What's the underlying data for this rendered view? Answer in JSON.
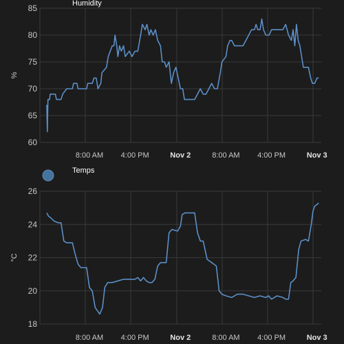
{
  "colors": {
    "line": "#5b8fc8",
    "legend_dot": "#44739e"
  },
  "chart_data": [
    {
      "type": "line",
      "series_name": "Humidity",
      "ylabel": "%",
      "ylim": [
        60,
        85
      ],
      "yticks": [
        60,
        65,
        70,
        75,
        80,
        85
      ],
      "xticks": [
        {
          "label": "8:00 AM",
          "t": 8,
          "bold": false
        },
        {
          "label": "4:00 PM",
          "t": 16,
          "bold": false
        },
        {
          "label": "Nov 2",
          "t": 24,
          "bold": true
        },
        {
          "label": "8:00 AM",
          "t": 32,
          "bold": false
        },
        {
          "label": "4:00 PM",
          "t": 40,
          "bold": false
        },
        {
          "label": "Nov 3",
          "t": 48,
          "bold": true
        }
      ],
      "xrange": [
        0.5,
        48.4
      ],
      "legend_dot": false,
      "points": [
        [
          0.5,
          67
        ],
        [
          0.6,
          62
        ],
        [
          0.7,
          68
        ],
        [
          1.0,
          68
        ],
        [
          1.1,
          69
        ],
        [
          2.0,
          69
        ],
        [
          2.2,
          68
        ],
        [
          3.0,
          68
        ],
        [
          3.3,
          69
        ],
        [
          4.0,
          70
        ],
        [
          5.0,
          70
        ],
        [
          5.2,
          71
        ],
        [
          5.8,
          71
        ],
        [
          6.0,
          70
        ],
        [
          7.5,
          70
        ],
        [
          7.7,
          71
        ],
        [
          8.5,
          71
        ],
        [
          8.8,
          72
        ],
        [
          9.2,
          72
        ],
        [
          9.5,
          70
        ],
        [
          10.0,
          71
        ],
        [
          10.2,
          73
        ],
        [
          11.0,
          74
        ],
        [
          11.3,
          76
        ],
        [
          12.0,
          78
        ],
        [
          12.3,
          78
        ],
        [
          12.5,
          80
        ],
        [
          12.8,
          78
        ],
        [
          13.0,
          76
        ],
        [
          13.3,
          78
        ],
        [
          13.6,
          77
        ],
        [
          14.0,
          78
        ],
        [
          14.3,
          76
        ],
        [
          15.0,
          77
        ],
        [
          15.5,
          76
        ],
        [
          16.0,
          77
        ],
        [
          16.5,
          77
        ],
        [
          17.0,
          80
        ],
        [
          17.3,
          82
        ],
        [
          17.8,
          81
        ],
        [
          18.1,
          82
        ],
        [
          18.5,
          80
        ],
        [
          18.8,
          81
        ],
        [
          19.2,
          80
        ],
        [
          19.6,
          81
        ],
        [
          20.0,
          79
        ],
        [
          20.5,
          78
        ],
        [
          20.8,
          75
        ],
        [
          21.2,
          75
        ],
        [
          21.5,
          74
        ],
        [
          22.0,
          75
        ],
        [
          22.4,
          71
        ],
        [
          22.8,
          73
        ],
        [
          23.2,
          74
        ],
        [
          23.6,
          72
        ],
        [
          24.0,
          70
        ],
        [
          24.4,
          70
        ],
        [
          24.7,
          68
        ],
        [
          26.0,
          68
        ],
        [
          26.5,
          68
        ],
        [
          27.0,
          69
        ],
        [
          27.5,
          70
        ],
        [
          28.0,
          69
        ],
        [
          28.5,
          69
        ],
        [
          29.0,
          70
        ],
        [
          29.5,
          71
        ],
        [
          30.0,
          70
        ],
        [
          30.5,
          70
        ],
        [
          31.0,
          73
        ],
        [
          31.3,
          75
        ],
        [
          32.0,
          76
        ],
        [
          32.3,
          78
        ],
        [
          32.7,
          79
        ],
        [
          33.0,
          79
        ],
        [
          33.5,
          78
        ],
        [
          35.0,
          78
        ],
        [
          35.5,
          79
        ],
        [
          36.0,
          80
        ],
        [
          36.5,
          81
        ],
        [
          37.0,
          81
        ],
        [
          37.3,
          82
        ],
        [
          37.6,
          81
        ],
        [
          38.0,
          81
        ],
        [
          38.3,
          83
        ],
        [
          38.6,
          81
        ],
        [
          39.0,
          80
        ],
        [
          39.6,
          80
        ],
        [
          40.0,
          81
        ],
        [
          42.0,
          81
        ],
        [
          42.5,
          82
        ],
        [
          43.0,
          80
        ],
        [
          43.5,
          79
        ],
        [
          43.8,
          81
        ],
        [
          44.1,
          78
        ],
        [
          44.4,
          82
        ],
        [
          44.7,
          79
        ],
        [
          45.0,
          78
        ],
        [
          45.3,
          76
        ],
        [
          45.6,
          74
        ],
        [
          46.5,
          74
        ],
        [
          46.9,
          72
        ],
        [
          47.2,
          71
        ],
        [
          47.6,
          71
        ],
        [
          48.0,
          72
        ],
        [
          48.3,
          72
        ]
      ]
    },
    {
      "type": "line",
      "series_name": "Temps",
      "ylabel": "°C",
      "ylim": [
        18,
        26
      ],
      "yticks": [
        18,
        20,
        22,
        24,
        26
      ],
      "xticks": [
        {
          "label": "8:00 AM",
          "t": 8,
          "bold": false
        },
        {
          "label": "4:00 PM",
          "t": 16,
          "bold": false
        },
        {
          "label": "Nov 2",
          "t": 24,
          "bold": true
        },
        {
          "label": "8:00 AM",
          "t": 32,
          "bold": false
        },
        {
          "label": "4:00 PM",
          "t": 40,
          "bold": false
        },
        {
          "label": "Nov 3",
          "t": 48,
          "bold": true
        }
      ],
      "xrange": [
        0.5,
        48.4
      ],
      "legend_dot": true,
      "points": [
        [
          0.5,
          24.7
        ],
        [
          0.8,
          24.5
        ],
        [
          1.2,
          24.4
        ],
        [
          1.8,
          24.2
        ],
        [
          2.5,
          24.1
        ],
        [
          3.0,
          24.1
        ],
        [
          3.5,
          23.0
        ],
        [
          4.0,
          22.9
        ],
        [
          5.0,
          22.9
        ],
        [
          5.5,
          22.2
        ],
        [
          6.0,
          21.6
        ],
        [
          6.5,
          21.4
        ],
        [
          7.5,
          21.4
        ],
        [
          8.0,
          20.2
        ],
        [
          8.5,
          20.0
        ],
        [
          9.0,
          19.0
        ],
        [
          9.4,
          18.8
        ],
        [
          9.8,
          18.6
        ],
        [
          10.3,
          19.0
        ],
        [
          10.7,
          20.2
        ],
        [
          11.2,
          20.5
        ],
        [
          12.0,
          20.5
        ],
        [
          13.0,
          20.6
        ],
        [
          14.0,
          20.7
        ],
        [
          15.0,
          20.7
        ],
        [
          16.0,
          20.7
        ],
        [
          16.5,
          20.8
        ],
        [
          17.0,
          20.6
        ],
        [
          17.5,
          20.8
        ],
        [
          18.0,
          20.6
        ],
        [
          18.5,
          20.5
        ],
        [
          19.0,
          20.5
        ],
        [
          19.5,
          20.7
        ],
        [
          20.0,
          21.5
        ],
        [
          20.5,
          21.7
        ],
        [
          21.5,
          21.7
        ],
        [
          22.0,
          23.5
        ],
        [
          22.5,
          23.7
        ],
        [
          23.5,
          23.6
        ],
        [
          24.0,
          23.9
        ],
        [
          24.3,
          24.6
        ],
        [
          24.8,
          24.7
        ],
        [
          26.5,
          24.7
        ],
        [
          27.0,
          23.5
        ],
        [
          27.5,
          23.0
        ],
        [
          28.0,
          23.0
        ],
        [
          28.7,
          21.9
        ],
        [
          29.5,
          21.7
        ],
        [
          30.3,
          21.5
        ],
        [
          30.8,
          20.0
        ],
        [
          31.3,
          19.8
        ],
        [
          32.0,
          19.7
        ],
        [
          33.0,
          19.6
        ],
        [
          34.0,
          19.8
        ],
        [
          35.0,
          19.8
        ],
        [
          36.0,
          19.7
        ],
        [
          37.0,
          19.6
        ],
        [
          38.0,
          19.7
        ],
        [
          39.0,
          19.6
        ],
        [
          39.5,
          19.7
        ],
        [
          40.0,
          19.5
        ],
        [
          41.0,
          19.7
        ],
        [
          42.0,
          19.6
        ],
        [
          42.5,
          19.5
        ],
        [
          43.0,
          19.5
        ],
        [
          43.4,
          20.5
        ],
        [
          43.8,
          20.6
        ],
        [
          44.3,
          20.8
        ],
        [
          44.8,
          22.5
        ],
        [
          45.2,
          23.0
        ],
        [
          46.0,
          23.1
        ],
        [
          46.5,
          23.0
        ],
        [
          47.0,
          24.0
        ],
        [
          47.3,
          24.8
        ],
        [
          47.6,
          25.1
        ],
        [
          48.0,
          25.2
        ],
        [
          48.3,
          25.3
        ]
      ]
    }
  ]
}
